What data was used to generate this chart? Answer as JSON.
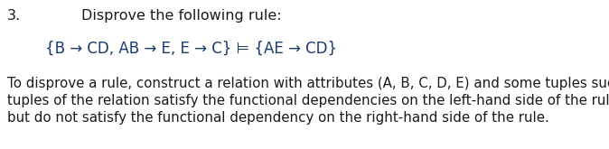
{
  "number": "3.",
  "title": "Disprove the following rule:",
  "rule_text": "{B → CD, AB → E, E → C} ⊨ {AE → CD}",
  "body_lines": [
    "To disprove a rule, construct a relation with attributes (A, B, C, D, E) and some tuples such that the",
    "tuples of the relation satisfy the functional dependencies on the left-hand side of the rule (left of ⊨)",
    "but do not satisfy the functional dependency on the right-hand side of the rule."
  ],
  "bg_color": "#ffffff",
  "text_color": "#1a1a1a",
  "rule_color": "#1a3a6b",
  "font_size_number": 11.5,
  "font_size_title": 11.5,
  "font_size_rule": 12.0,
  "font_size_body": 10.8,
  "fig_width": 6.74,
  "fig_height": 1.65,
  "dpi": 100
}
